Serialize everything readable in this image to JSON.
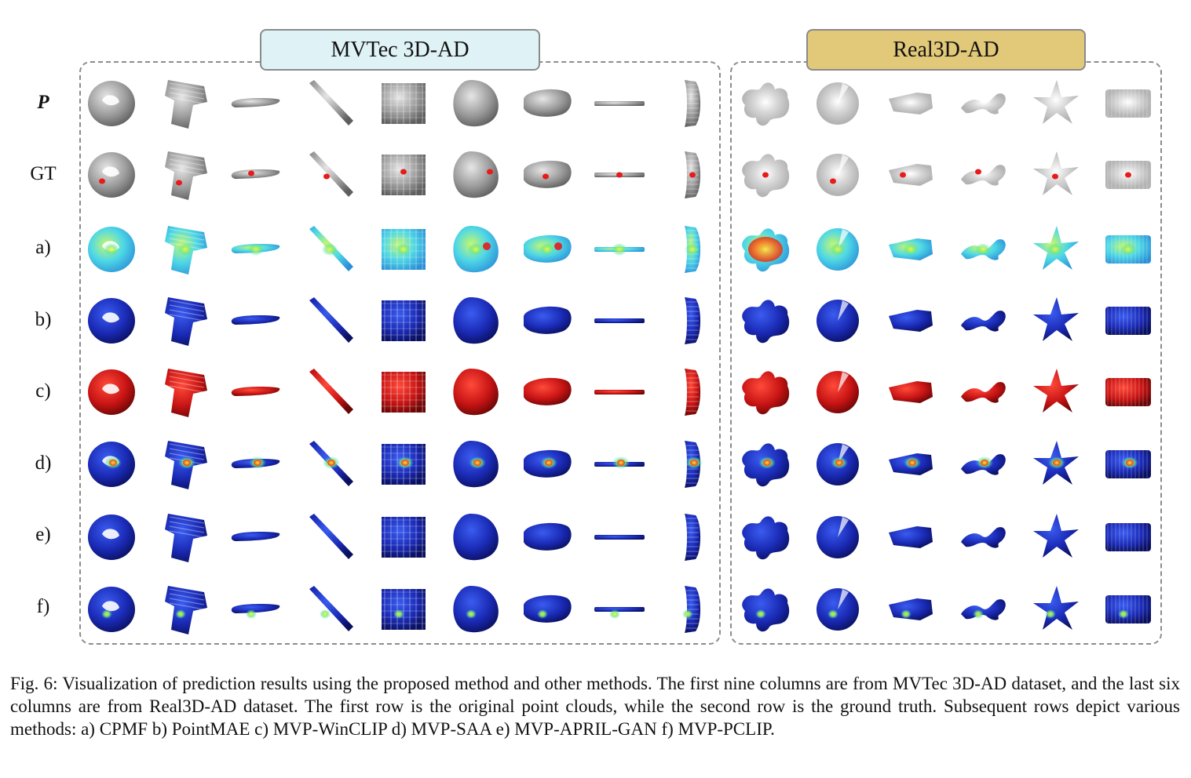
{
  "datasets": {
    "left": "MVTec 3D-AD",
    "right": "Real3D-AD"
  },
  "rows": [
    {
      "label": "P",
      "style": "bold",
      "mode": "gray"
    },
    {
      "label": "GT",
      "style": "normal",
      "mode": "gt"
    },
    {
      "label": "a)",
      "style": "normal",
      "mode": "cpmf"
    },
    {
      "label": "b)",
      "style": "normal",
      "mode": "blue"
    },
    {
      "label": "c)",
      "style": "normal",
      "mode": "red"
    },
    {
      "label": "d)",
      "style": "normal",
      "mode": "saa"
    },
    {
      "label": "e)",
      "style": "normal",
      "mode": "blue"
    },
    {
      "label": "f)",
      "style": "normal",
      "mode": "pclip"
    }
  ],
  "objects": [
    "bagel",
    "cable-gland",
    "carrot",
    "cookie-stick",
    "dowel-grid",
    "peach",
    "potato",
    "rope",
    "tire",
    "airplane",
    "candybar",
    "car",
    "seahorse",
    "starfish",
    "shell-box"
  ],
  "colors": {
    "gray": "#8a8a8a",
    "blue": "#1a2fb0",
    "red": "#c81414",
    "cyan": "#4fd8e6",
    "anomaly": "#e81a1a"
  },
  "caption": "Fig. 6: Visualization of prediction results using the proposed method and other methods. The first nine columns are from MVTec 3D-AD dataset, and the last six columns are from Real3D-AD dataset. The first row is the original point clouds, while the second row is the ground truth. Subsequent rows depict various methods: a) CPMF b) PointMAE c) MVP-WinCLIP d) MVP-SAA e) MVP-APRIL-GAN f) MVP-PCLIP."
}
